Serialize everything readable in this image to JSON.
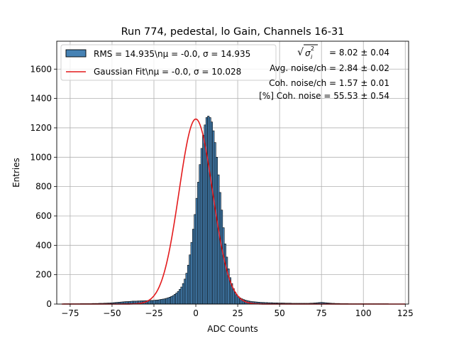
{
  "chart_data": {
    "type": "bar",
    "title": "Run 774, pedestal, lo Gain, Channels 16-31",
    "xlabel": "ADC Counts",
    "ylabel": "Entries",
    "xlim": [
      -83,
      127
    ],
    "ylim": [
      0,
      1790
    ],
    "xticks": [
      -75,
      -50,
      -25,
      0,
      25,
      50,
      75,
      100,
      125
    ],
    "yticks": [
      0,
      200,
      400,
      600,
      800,
      1000,
      1200,
      1400,
      1600
    ],
    "grid": true,
    "legend_position": "top-left",
    "histogram": {
      "name": "RMS = 14.935\\nμ = -0.0, σ = 14.935",
      "bin_start": -79,
      "bin_width": 1,
      "color": "#4682b4",
      "edge_color": "#000000",
      "counts": [
        2,
        2,
        2,
        2,
        2,
        2,
        2,
        2,
        2,
        2,
        3,
        3,
        3,
        3,
        3,
        3,
        3,
        4,
        4,
        4,
        4,
        5,
        5,
        5,
        6,
        6,
        7,
        7,
        8,
        9,
        10,
        11,
        12,
        13,
        14,
        15,
        16,
        17,
        17,
        18,
        19,
        20,
        20,
        20,
        21,
        21,
        22,
        22,
        23,
        23,
        24,
        24,
        25,
        25,
        26,
        27,
        28,
        30,
        32,
        34,
        36,
        39,
        43,
        47,
        52,
        58,
        66,
        75,
        86,
        100,
        116,
        140,
        170,
        210,
        265,
        335,
        420,
        510,
        610,
        720,
        830,
        950,
        1060,
        1150,
        1220,
        1270,
        1280,
        1270,
        1240,
        1180,
        1100,
        1000,
        880,
        760,
        640,
        520,
        410,
        320,
        240,
        180,
        140,
        105,
        80,
        62,
        50,
        42,
        36,
        31,
        27,
        24,
        21,
        19,
        17,
        16,
        15,
        14,
        13,
        12,
        11,
        11,
        10,
        10,
        9,
        9,
        9,
        8,
        8,
        8,
        7,
        7,
        7,
        7,
        6,
        6,
        6,
        6,
        5,
        5,
        5,
        5,
        5,
        5,
        5,
        5,
        5,
        5,
        5,
        6,
        6,
        7,
        8,
        9,
        10,
        11,
        11,
        10,
        9,
        8,
        7,
        6,
        5,
        5,
        4,
        4,
        4,
        3,
        3,
        3,
        3,
        3,
        2,
        2,
        2,
        2,
        2,
        2,
        2,
        2,
        2,
        2,
        2,
        2,
        2,
        2,
        2,
        2,
        2,
        2,
        2,
        2,
        2,
        2,
        2,
        2
      ]
    },
    "fit": {
      "name": "Gaussian Fit\\nμ = -0.0, σ = 10.028",
      "mu": 0.0,
      "sigma": 10.028,
      "amplitude": 1260,
      "x_range": [
        -80,
        125
      ],
      "color": "#e31a1c"
    },
    "annotations": [
      {
        "prefix": "",
        "sigma_label": "σ",
        "sub": "i",
        "sup": "2",
        "suffix": "= 8.02 ± 0.04"
      },
      {
        "text": "Avg. noise/ch = 2.84 ± 0.02"
      },
      {
        "text": "Coh. noise/ch = 1.57 ± 0.01"
      },
      {
        "text": "[%] Coh. noise = 55.53 ± 0.54"
      }
    ]
  }
}
